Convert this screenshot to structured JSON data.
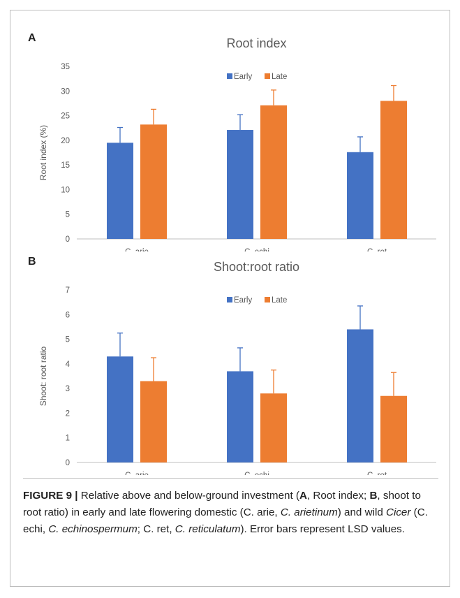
{
  "panels": {
    "a": {
      "letter": "A"
    },
    "b": {
      "letter": "B"
    }
  },
  "caption": {
    "label": "FIGURE 9",
    "divider": "|",
    "parts": [
      {
        "t": "Relative above and below-ground investment (",
        "s": "n"
      },
      {
        "t": "A",
        "s": "b"
      },
      {
        "t": ", Root index; ",
        "s": "n"
      },
      {
        "t": "B",
        "s": "b"
      },
      {
        "t": ", shoot to root ratio) in early and late flowering domestic (C. arie, ",
        "s": "n"
      },
      {
        "t": "C. arietinum",
        "s": "i"
      },
      {
        "t": ") and wild ",
        "s": "n"
      },
      {
        "t": "Cicer",
        "s": "i"
      },
      {
        "t": " (C. echi, ",
        "s": "n"
      },
      {
        "t": "C. echinospermum",
        "s": "i"
      },
      {
        "t": "; C. ret, ",
        "s": "n"
      },
      {
        "t": "C. reticulatum",
        "s": "i"
      },
      {
        "t": "). Error bars represent LSD values.",
        "s": "n"
      }
    ]
  },
  "colors": {
    "early": "#4472C4",
    "late": "#ED7D31",
    "axis": "#bfbfbf",
    "text": "#595959"
  },
  "chart_data": [
    {
      "type": "bar",
      "title": "Root index",
      "ylabel": "Root index (%)",
      "xlabel": "",
      "ylim": [
        0,
        35
      ],
      "yticks": [
        0,
        5,
        10,
        15,
        20,
        25,
        30,
        35
      ],
      "categories": [
        "C. arie",
        "C. echi",
        "C. ret"
      ],
      "legend_position": "top-center",
      "grid": false,
      "series": [
        {
          "name": "Early",
          "values": [
            19.5,
            22.1,
            17.6
          ],
          "error": [
            3.1,
            3.1,
            3.1
          ]
        },
        {
          "name": "Late",
          "values": [
            23.2,
            27.1,
            28.0
          ],
          "error": [
            3.1,
            3.1,
            3.1
          ]
        }
      ]
    },
    {
      "type": "bar",
      "title": "Shoot:root ratio",
      "ylabel": "Shoot: root ratio",
      "xlabel": "",
      "ylim": [
        0,
        7
      ],
      "yticks": [
        0,
        1,
        2,
        3,
        4,
        5,
        6,
        7
      ],
      "categories": [
        "C. arie",
        "C. echi",
        "C. ret"
      ],
      "legend_position": "top-center",
      "grid": false,
      "series": [
        {
          "name": "Early",
          "values": [
            4.3,
            3.7,
            5.4
          ],
          "error": [
            0.95,
            0.95,
            0.95
          ]
        },
        {
          "name": "Late",
          "values": [
            3.3,
            2.8,
            2.7
          ],
          "error": [
            0.95,
            0.95,
            0.95
          ]
        }
      ]
    }
  ]
}
